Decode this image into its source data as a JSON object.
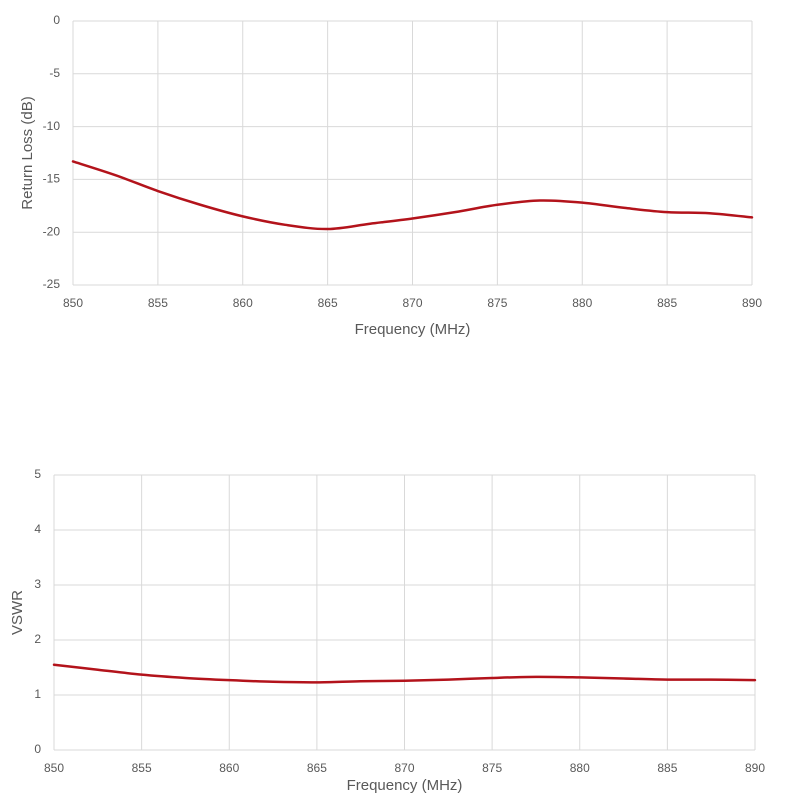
{
  "chart_data": [
    {
      "type": "line",
      "x_label": "Frequency (MHz)",
      "y_label": "Return Loss (dB)",
      "x": [
        850,
        852.5,
        855,
        857.5,
        860,
        862.5,
        865,
        867.5,
        870,
        872.5,
        875,
        877.5,
        880,
        882.5,
        885,
        887.5,
        890
      ],
      "series": [
        {
          "color": "#b3131b",
          "values": [
            -13.3,
            -14.6,
            -16.1,
            -17.4,
            -18.5,
            -19.3,
            -19.7,
            -19.2,
            -18.7,
            -18.1,
            -17.4,
            -17.0,
            -17.2,
            -17.7,
            -18.1,
            -18.2,
            -18.6
          ]
        }
      ],
      "xlim": [
        850,
        890
      ],
      "xticks": [
        850,
        855,
        860,
        865,
        870,
        875,
        880,
        885,
        890
      ],
      "ylim": [
        -25,
        0
      ],
      "yticks": [
        0,
        -5,
        -10,
        -15,
        -20,
        -25
      ],
      "grid": true
    },
    {
      "type": "line",
      "x_label": "Frequency (MHz)",
      "y_label": "VSWR",
      "x": [
        850,
        852.5,
        855,
        857.5,
        860,
        862.5,
        865,
        867.5,
        870,
        872.5,
        875,
        877.5,
        880,
        882.5,
        885,
        887.5,
        890
      ],
      "series": [
        {
          "color": "#b3131b",
          "values": [
            1.55,
            1.46,
            1.37,
            1.31,
            1.27,
            1.24,
            1.23,
            1.25,
            1.26,
            1.28,
            1.31,
            1.33,
            1.32,
            1.3,
            1.28,
            1.28,
            1.27
          ]
        }
      ],
      "xlim": [
        850,
        890
      ],
      "xticks": [
        850,
        855,
        860,
        865,
        870,
        875,
        880,
        885,
        890
      ],
      "ylim": [
        0,
        5
      ],
      "yticks": [
        0,
        1,
        2,
        3,
        4,
        5
      ],
      "grid": true
    }
  ]
}
